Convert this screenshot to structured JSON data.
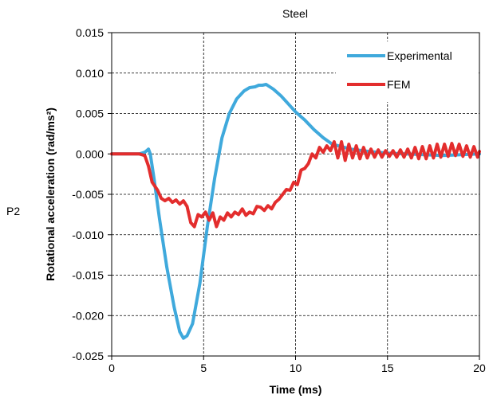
{
  "side_label": "P2",
  "chart_data": {
    "type": "line",
    "title": "Steel",
    "xlabel": "Time (ms)",
    "ylabel": "Rotational acceleration (rad/ms²)",
    "xlim": [
      0,
      20
    ],
    "ylim": [
      -0.025,
      0.015
    ],
    "x_ticks": [
      0,
      5,
      10,
      15,
      20
    ],
    "x_tick_labels": [
      "0",
      "5",
      "10",
      "15",
      "20"
    ],
    "y_ticks": [
      0.015,
      0.01,
      0.005,
      0.0,
      -0.005,
      -0.01,
      -0.015,
      -0.02,
      -0.025
    ],
    "y_tick_labels": [
      "0.015",
      "0.010",
      "0.005",
      "0.000",
      "-0.005",
      "-0.010",
      "-0.015",
      "-0.020",
      "-0.025"
    ],
    "grid": true,
    "legend_position": "top-right",
    "series": [
      {
        "name": "Experimental",
        "color": "#3fa9dc",
        "x": [
          0,
          0.5,
          1.0,
          1.5,
          1.8,
          2.0,
          2.1,
          2.3,
          2.6,
          3.0,
          3.4,
          3.7,
          3.9,
          4.1,
          4.4,
          4.8,
          5.2,
          5.6,
          6.0,
          6.4,
          6.8,
          7.2,
          7.5,
          7.8,
          8.0,
          8.2,
          8.4,
          8.6,
          8.8,
          9.2,
          9.6,
          10.0,
          10.5,
          11.0,
          11.5,
          12.0,
          13.0,
          14.0,
          15.0,
          16.0,
          17.0,
          18.0,
          19.0,
          20.0
        ],
        "y": [
          0.0,
          0.0,
          0.0,
          0.0,
          0.0002,
          0.0006,
          0.0,
          -0.003,
          -0.008,
          -0.014,
          -0.019,
          -0.022,
          -0.0228,
          -0.0225,
          -0.021,
          -0.016,
          -0.009,
          -0.003,
          0.002,
          0.005,
          0.0068,
          0.0078,
          0.0082,
          0.0083,
          0.0085,
          0.0085,
          0.0086,
          0.0083,
          0.008,
          0.0072,
          0.0062,
          0.0052,
          0.0042,
          0.003,
          0.002,
          0.0012,
          0.0006,
          0.0003,
          0.0001,
          0.0,
          -0.0001,
          -0.0002,
          -0.0001,
          0.0
        ]
      },
      {
        "name": "FEM",
        "color": "#e32d2d",
        "x": [
          0,
          0.5,
          1.0,
          1.5,
          1.8,
          2.0,
          2.2,
          2.5,
          2.7,
          2.9,
          3.1,
          3.3,
          3.5,
          3.7,
          3.9,
          4.1,
          4.3,
          4.5,
          4.7,
          4.9,
          5.1,
          5.3,
          5.5,
          5.7,
          5.9,
          6.1,
          6.3,
          6.5,
          6.7,
          6.9,
          7.1,
          7.3,
          7.5,
          7.7,
          7.9,
          8.1,
          8.3,
          8.5,
          8.7,
          8.9,
          9.1,
          9.3,
          9.5,
          9.7,
          9.9,
          10.1,
          10.3,
          10.5,
          10.7,
          10.9,
          11.1,
          11.3,
          11.5,
          11.7,
          11.9,
          12.1,
          12.3,
          12.5,
          12.7,
          12.9,
          13.1,
          13.3,
          13.5,
          13.7,
          13.9,
          14.1,
          14.3,
          14.5,
          14.7,
          14.9,
          15.1,
          15.3,
          15.5,
          15.7,
          15.9,
          16.1,
          16.3,
          16.5,
          16.7,
          16.9,
          17.1,
          17.3,
          17.5,
          17.7,
          17.9,
          18.1,
          18.3,
          18.5,
          18.7,
          18.9,
          19.1,
          19.3,
          19.5,
          19.7,
          19.9,
          20.0
        ],
        "y": [
          0.0,
          0.0,
          0.0,
          0.0,
          -0.0002,
          -0.0015,
          -0.0035,
          -0.0045,
          -0.0055,
          -0.0058,
          -0.0055,
          -0.006,
          -0.0057,
          -0.0062,
          -0.0058,
          -0.0065,
          -0.0085,
          -0.009,
          -0.0075,
          -0.0078,
          -0.0072,
          -0.0082,
          -0.0073,
          -0.009,
          -0.0078,
          -0.0082,
          -0.0073,
          -0.0078,
          -0.0072,
          -0.0075,
          -0.0068,
          -0.0076,
          -0.0072,
          -0.0074,
          -0.0065,
          -0.0066,
          -0.007,
          -0.0064,
          -0.0068,
          -0.006,
          -0.0056,
          -0.005,
          -0.0044,
          -0.0045,
          -0.0035,
          -0.0038,
          -0.002,
          -0.0018,
          -0.0012,
          0.0,
          -0.0005,
          0.0008,
          0.0002,
          0.001,
          0.0004,
          0.0015,
          -0.0005,
          0.0015,
          -0.0008,
          0.0012,
          -0.0005,
          0.001,
          -0.0006,
          0.0008,
          -0.0005,
          0.0006,
          -0.0004,
          0.0005,
          -0.0004,
          0.0004,
          -0.0003,
          0.0004,
          -0.0004,
          0.0005,
          -0.0004,
          0.0006,
          -0.0005,
          0.0008,
          -0.0006,
          0.0009,
          -0.0006,
          0.001,
          -0.0005,
          0.0012,
          -0.0004,
          0.0012,
          -0.0003,
          0.0013,
          -0.0002,
          0.0012,
          -0.0003,
          0.001,
          -0.0004,
          0.0009,
          -0.0004,
          0.0003
        ]
      }
    ]
  }
}
